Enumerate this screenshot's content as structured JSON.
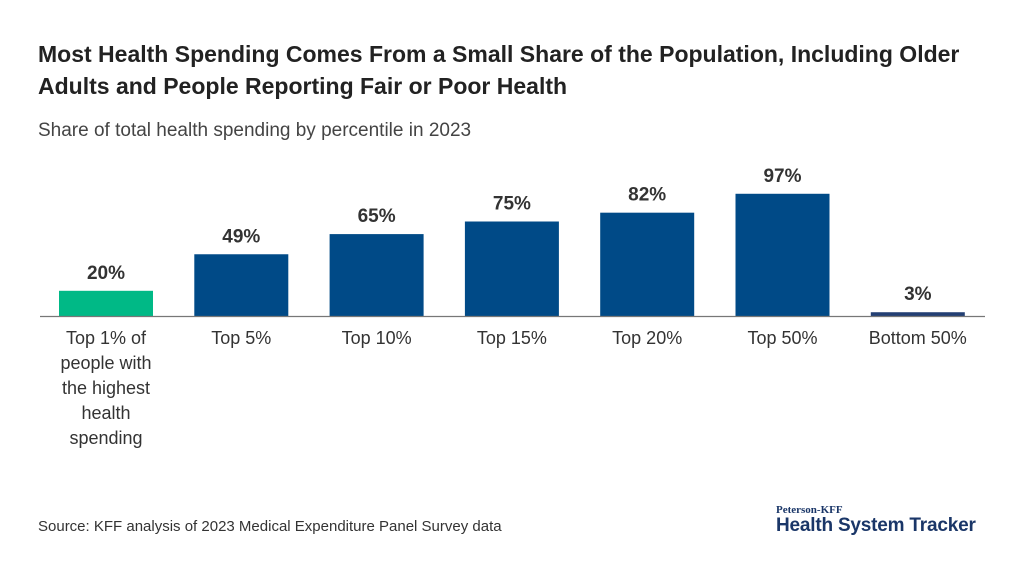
{
  "chart_data": {
    "type": "bar",
    "title": "Most Health Spending Comes From a Small Share of the Population, Including Older Adults and People Reporting Fair or Poor Health",
    "subtitle": "Share of total health spending by percentile in 2023",
    "categories": [
      "Top 1% of people with the highest health spending",
      "Top 5%",
      "Top 10%",
      "Top 15%",
      "Top 20%",
      "Top 50%",
      "Bottom 50%"
    ],
    "category_lines": [
      [
        "Top 1% of",
        "people with",
        "the highest",
        "health",
        "spending"
      ],
      [
        "Top 5%"
      ],
      [
        "Top 10%"
      ],
      [
        "Top 15%"
      ],
      [
        "Top 20%"
      ],
      [
        "Top 50%"
      ],
      [
        "Bottom 50%"
      ]
    ],
    "values": [
      20,
      49,
      65,
      75,
      82,
      97,
      3
    ],
    "data_labels": [
      "20%",
      "49%",
      "65%",
      "75%",
      "82%",
      "97%",
      "3%"
    ],
    "colors": [
      "#00b986",
      "#004a87",
      "#004a87",
      "#004a87",
      "#004a87",
      "#004a87",
      "#233f73"
    ],
    "ylim": [
      0,
      100
    ],
    "grid": false,
    "xlabel": "",
    "ylabel": ""
  },
  "source": "Source: KFF analysis of 2023 Medical Expenditure Panel Survey data",
  "logo": {
    "small": "Peterson-KFF",
    "big": "Health System Tracker"
  }
}
